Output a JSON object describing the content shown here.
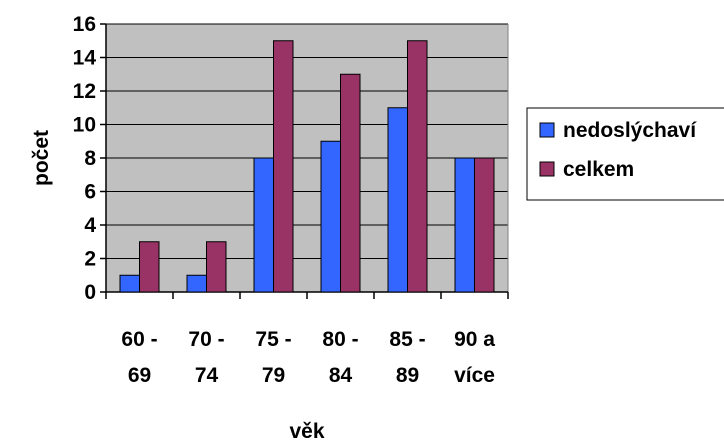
{
  "chart_data": {
    "type": "bar",
    "categories": [
      [
        "60 -",
        "69"
      ],
      [
        "70 -",
        "74"
      ],
      [
        "75 -",
        "79"
      ],
      [
        "80 -",
        "84"
      ],
      [
        "85 -",
        "89"
      ],
      [
        "90 a",
        "více"
      ]
    ],
    "series": [
      {
        "name": "nedoslýchaví",
        "values": [
          1,
          1,
          8,
          9,
          11,
          8
        ],
        "color": "#3366FF"
      },
      {
        "name": "celkem",
        "values": [
          3,
          3,
          15,
          13,
          15,
          8
        ],
        "color": "#993366"
      }
    ],
    "xlabel": "věk",
    "ylabel": "počet",
    "ylim": [
      0,
      16
    ],
    "ytick_step": 2,
    "grid": true,
    "plot_background": "#C0C0C0",
    "legend_position": "right"
  }
}
